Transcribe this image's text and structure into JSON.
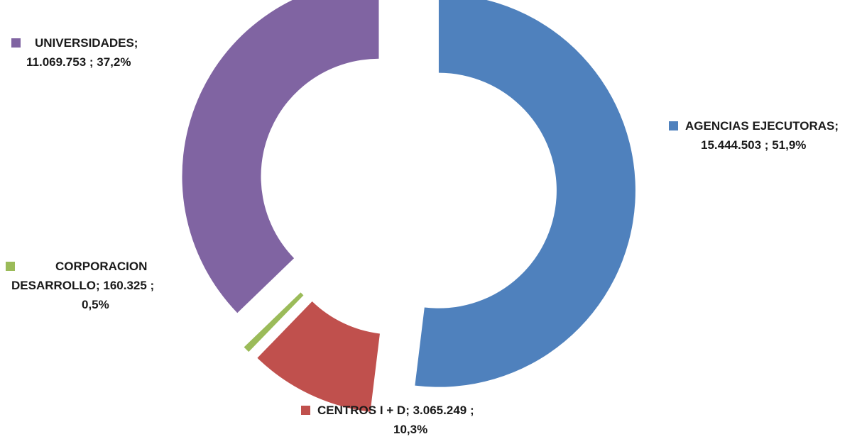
{
  "chart_data": {
    "type": "pie",
    "variant": "exploded-doughnut",
    "title": "",
    "legend": "none",
    "slices": [
      {
        "name": "AGENCIAS EJECUTORAS",
        "value": 15444503,
        "value_label": "15.444.503",
        "percent": 51.9,
        "percent_label": "51,9%",
        "color": "#4F81BD"
      },
      {
        "name": "CENTROS I + D",
        "value": 3065249,
        "value_label": "3.065.249",
        "percent": 10.3,
        "percent_label": "10,3%",
        "color": "#C0504D"
      },
      {
        "name": "CORPORACION DESARROLLO",
        "value": 160325,
        "value_label": "160.325",
        "percent": 0.5,
        "percent_label": "0,5%",
        "color": "#9BBB59"
      },
      {
        "name": "UNIVERSIDADES",
        "value": 11069753,
        "value_label": "11.069.753",
        "percent": 37.2,
        "percent_label": "37,2%",
        "color": "#8064A2"
      }
    ]
  },
  "labels": {
    "agencias": {
      "line1": "AGENCIAS EJECUTORAS;",
      "line2": "15.444.503 ; 51,9%"
    },
    "centros": {
      "line1": "CENTROS I + D;  3.065.249 ;",
      "line2": "10,3%"
    },
    "corporacion": {
      "line1": "CORPORACION",
      "line2": "DESARROLLO;  160.325 ;",
      "line3": "0,5%"
    },
    "universidades": {
      "line1": "UNIVERSIDADES;",
      "line2": "11.069.753 ; 37,2%"
    }
  }
}
